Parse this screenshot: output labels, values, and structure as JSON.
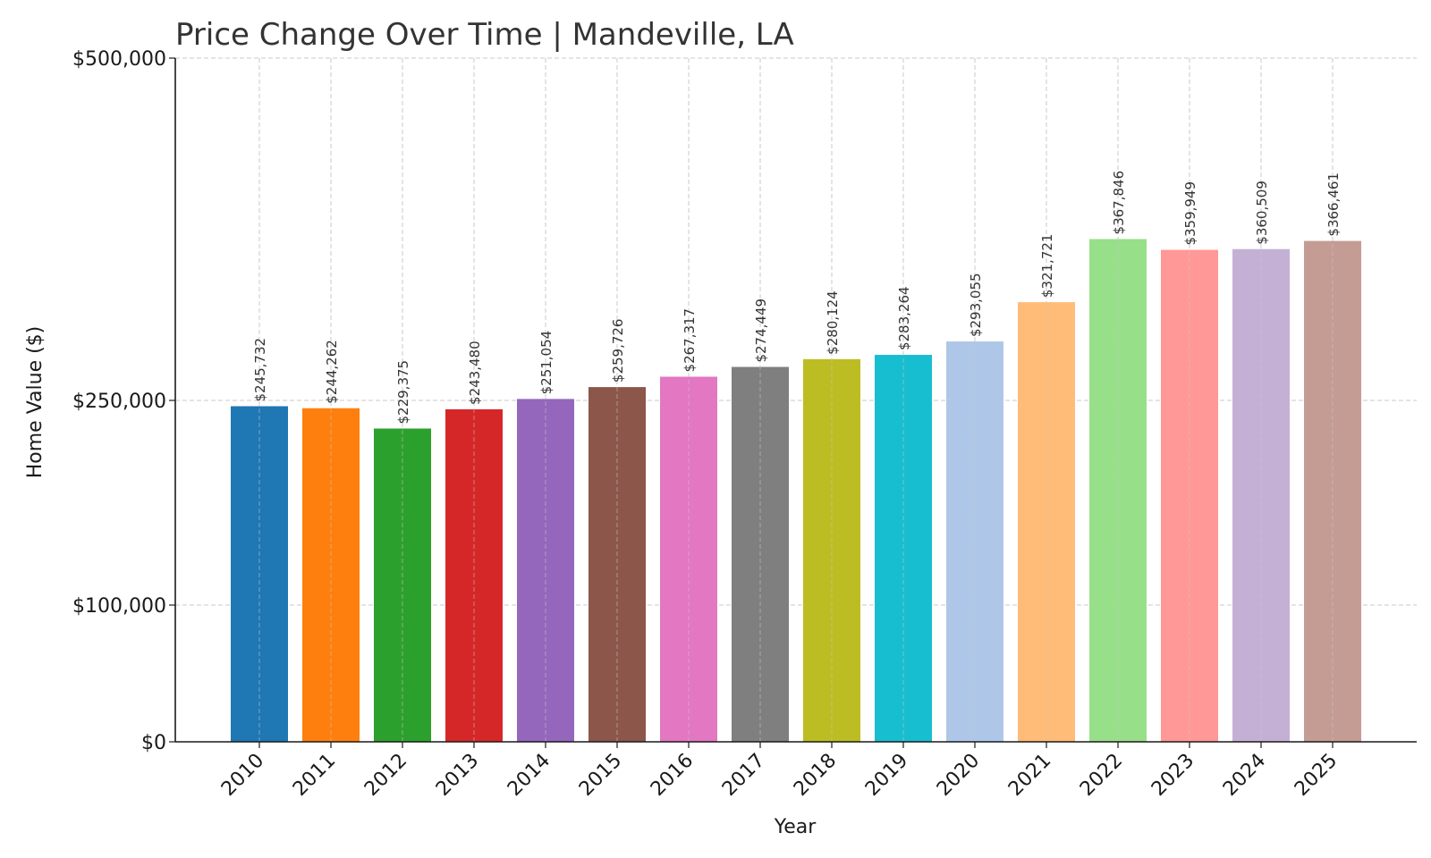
{
  "chart_data": {
    "type": "bar",
    "title": "Price Change Over Time | Mandeville, LA",
    "xlabel": "Year",
    "ylabel": "Home Value ($)",
    "categories": [
      "2010",
      "2011",
      "2012",
      "2013",
      "2014",
      "2015",
      "2016",
      "2017",
      "2018",
      "2019",
      "2020",
      "2021",
      "2022",
      "2023",
      "2024",
      "2025"
    ],
    "values": [
      245732,
      244262,
      229375,
      243480,
      251054,
      259726,
      267317,
      274449,
      280124,
      283264,
      293055,
      321721,
      367846,
      359949,
      360509,
      366461
    ],
    "data_labels": [
      "$245,732",
      "$244,262",
      "$229,375",
      "$243,480",
      "$251,054",
      "$259,726",
      "$267,317",
      "$274,449",
      "$280,124",
      "$283,264",
      "$293,055",
      "$321,721",
      "$367,846",
      "$359,949",
      "$360,509",
      "$366,461"
    ],
    "colors": [
      "#1f77b4",
      "#ff7f0e",
      "#2ca02c",
      "#d62728",
      "#9467bd",
      "#8c564b",
      "#e377c2",
      "#7f7f7f",
      "#bcbd22",
      "#17becf",
      "#aec7e8",
      "#ffbb78",
      "#98df8a",
      "#ff9896",
      "#c5b0d5",
      "#c49c94"
    ],
    "y_ticks": [
      0,
      100000,
      250000,
      500000
    ],
    "y_tick_labels": [
      "$0",
      "$100,000",
      "$250,000",
      "$500,000"
    ],
    "ylim": [
      0,
      500000
    ],
    "grid": true
  }
}
